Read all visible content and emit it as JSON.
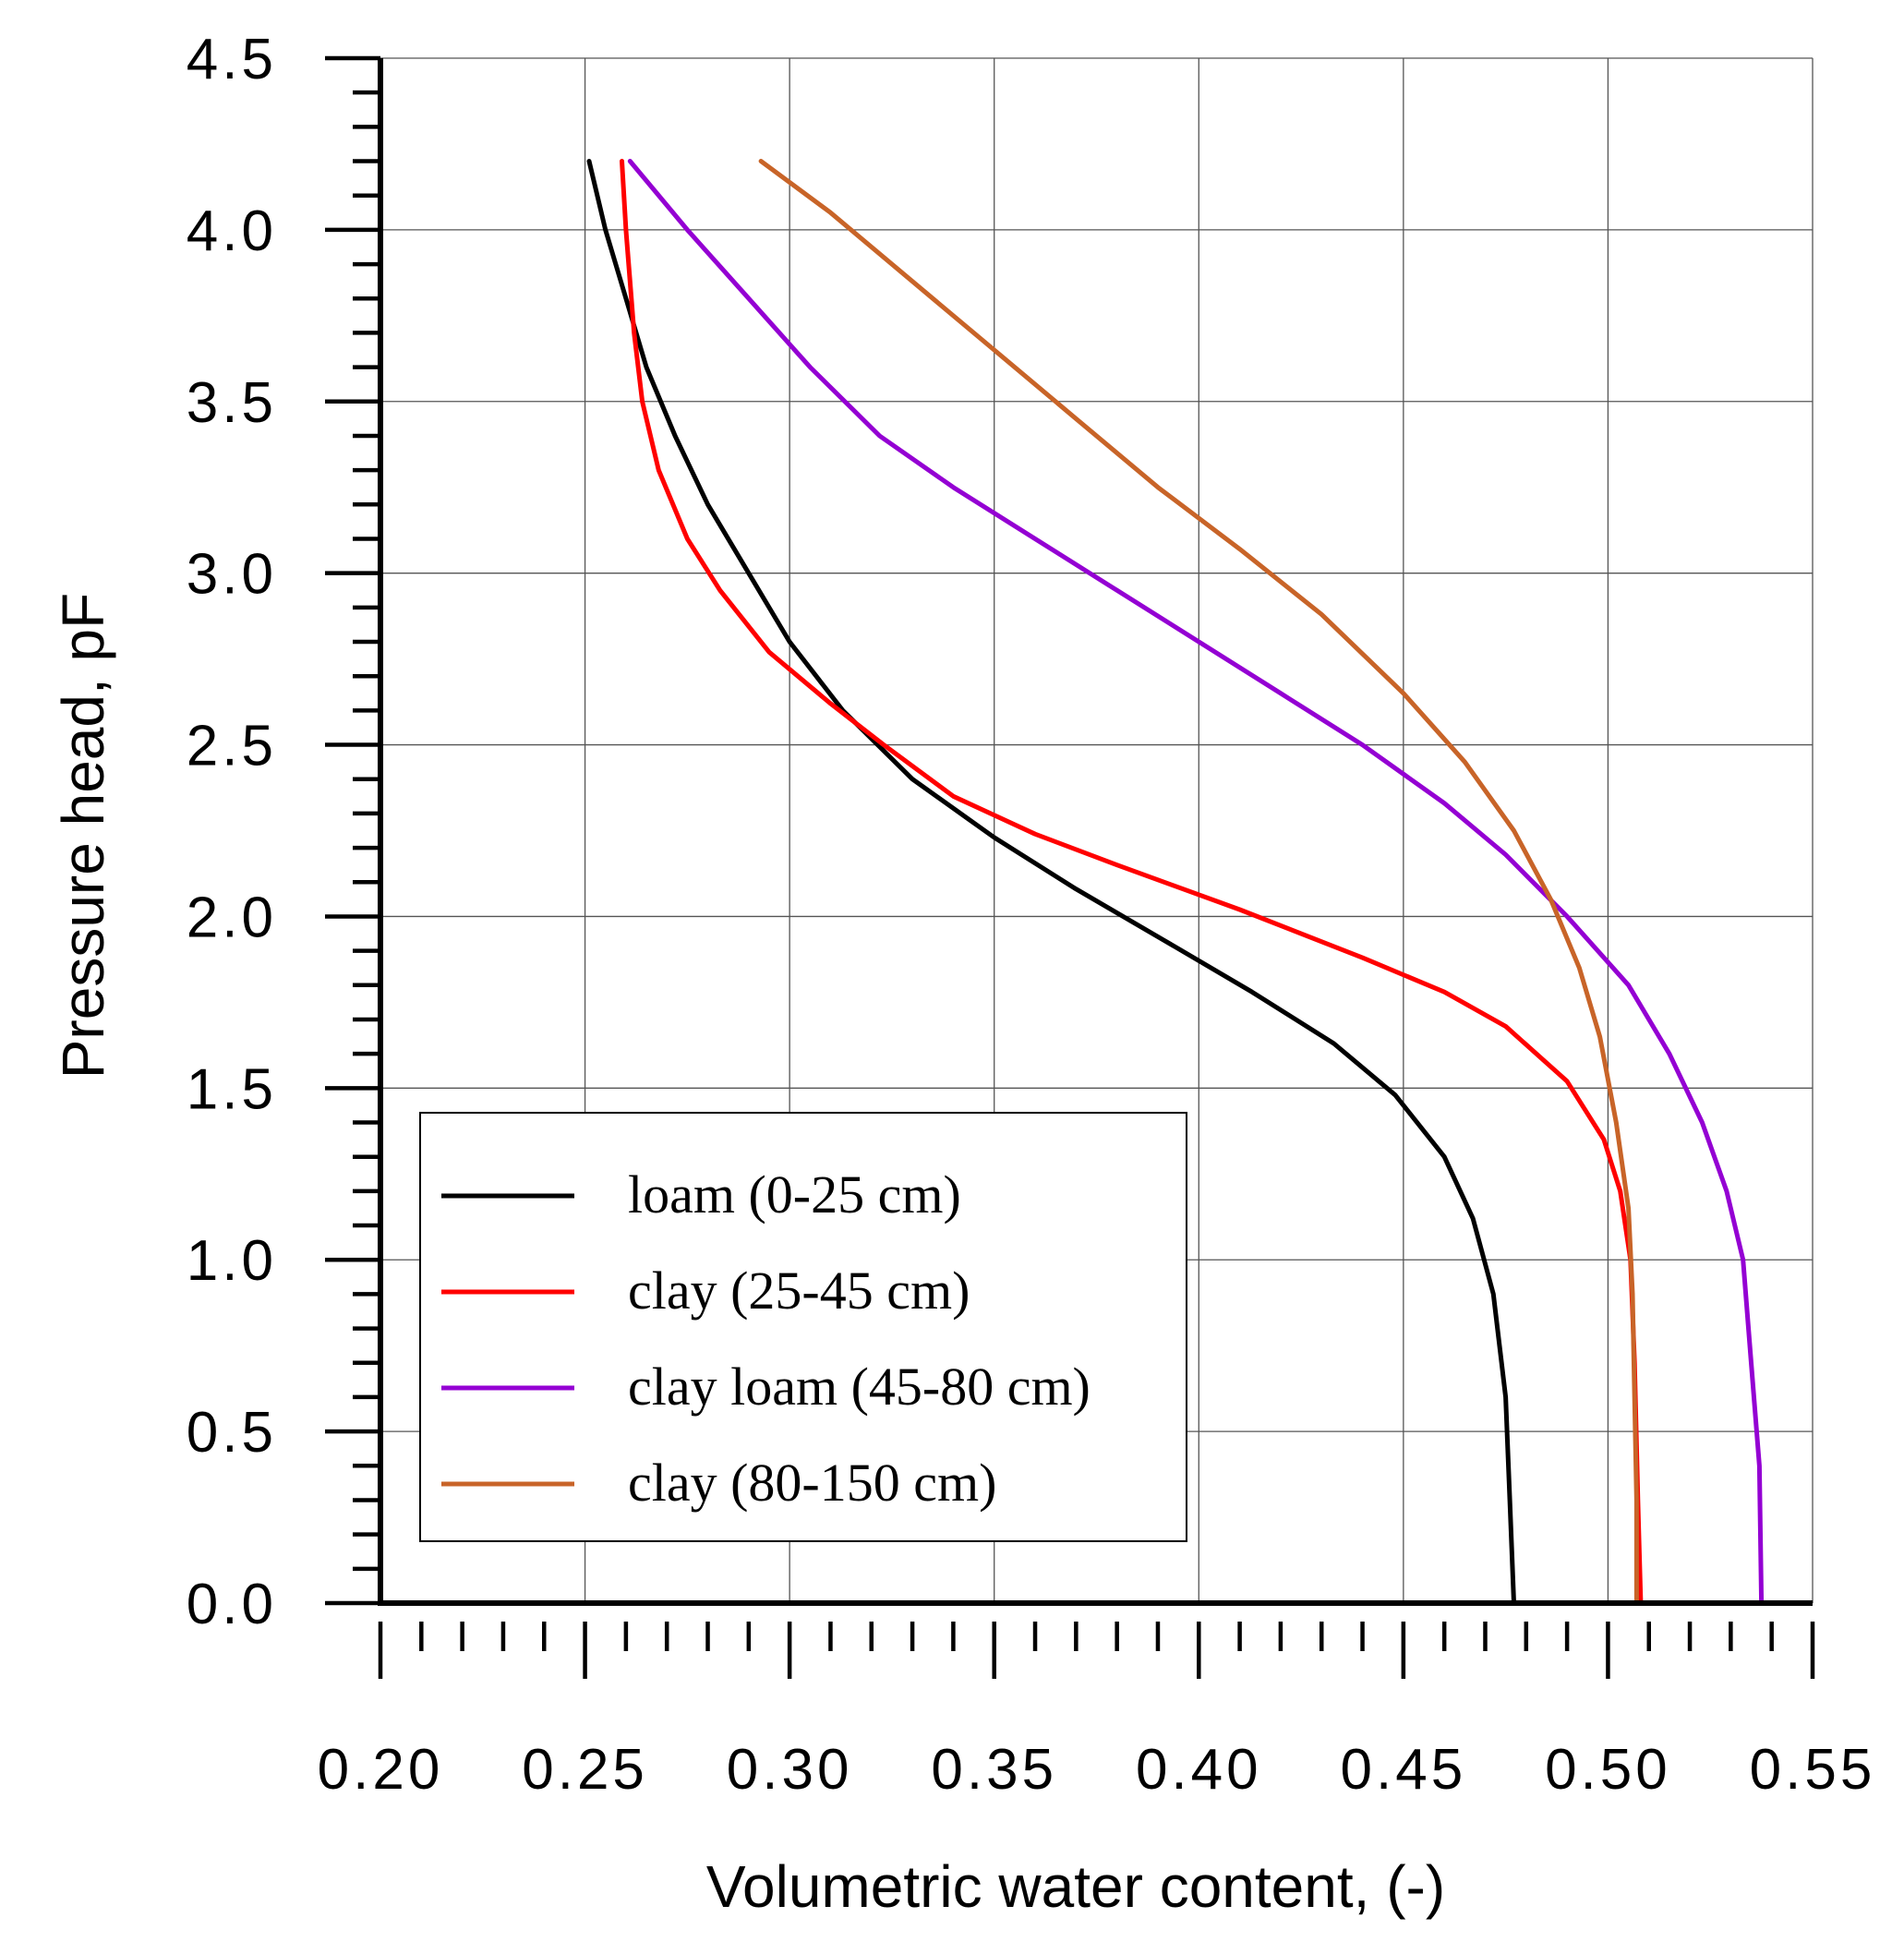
{
  "chart_data": {
    "type": "line",
    "title": "",
    "xlabel": "Volumetric water content, (-)",
    "ylabel": "Pressure head, pF",
    "xlim": [
      0.2,
      0.55
    ],
    "ylim": [
      0.0,
      4.5
    ],
    "xticks": [
      "0.20",
      "0.25",
      "0.30",
      "0.35",
      "0.40",
      "0.45",
      "0.50",
      "0.55"
    ],
    "yticks": [
      "0.0",
      "0.5",
      "1.0",
      "1.5",
      "2.0",
      "2.5",
      "3.0",
      "3.5",
      "4.0",
      "4.5"
    ],
    "grid": true,
    "legend_position": "bottom-left",
    "series": [
      {
        "name": "loam (0-25 cm)",
        "color": "#000000",
        "points": [
          [
            0.251,
            4.2
          ],
          [
            0.255,
            4.0
          ],
          [
            0.26,
            3.8
          ],
          [
            0.265,
            3.6
          ],
          [
            0.272,
            3.4
          ],
          [
            0.28,
            3.2
          ],
          [
            0.29,
            3.0
          ],
          [
            0.3,
            2.8
          ],
          [
            0.313,
            2.6
          ],
          [
            0.33,
            2.4
          ],
          [
            0.35,
            2.23
          ],
          [
            0.37,
            2.08
          ],
          [
            0.393,
            1.92
          ],
          [
            0.413,
            1.78
          ],
          [
            0.433,
            1.63
          ],
          [
            0.448,
            1.48
          ],
          [
            0.46,
            1.3
          ],
          [
            0.467,
            1.12
          ],
          [
            0.472,
            0.9
          ],
          [
            0.475,
            0.6
          ],
          [
            0.476,
            0.3
          ],
          [
            0.477,
            0.0
          ]
        ]
      },
      {
        "name": "clay (25-45 cm)",
        "color": "#ff0000",
        "points": [
          [
            0.259,
            4.2
          ],
          [
            0.26,
            4.0
          ],
          [
            0.262,
            3.7
          ],
          [
            0.264,
            3.5
          ],
          [
            0.268,
            3.3
          ],
          [
            0.275,
            3.1
          ],
          [
            0.283,
            2.95
          ],
          [
            0.295,
            2.77
          ],
          [
            0.31,
            2.62
          ],
          [
            0.323,
            2.5
          ],
          [
            0.34,
            2.35
          ],
          [
            0.36,
            2.24
          ],
          [
            0.38,
            2.15
          ],
          [
            0.41,
            2.02
          ],
          [
            0.44,
            1.88
          ],
          [
            0.46,
            1.78
          ],
          [
            0.475,
            1.68
          ],
          [
            0.49,
            1.52
          ],
          [
            0.499,
            1.35
          ],
          [
            0.503,
            1.2
          ],
          [
            0.5055,
            1.0
          ],
          [
            0.5065,
            0.7
          ],
          [
            0.5073,
            0.3
          ],
          [
            0.508,
            0.0
          ]
        ]
      },
      {
        "name": "clay loam (45-80 cm)",
        "color": "#9400d3",
        "points": [
          [
            0.261,
            4.2
          ],
          [
            0.275,
            4.0
          ],
          [
            0.29,
            3.8
          ],
          [
            0.305,
            3.6
          ],
          [
            0.322,
            3.4
          ],
          [
            0.34,
            3.25
          ],
          [
            0.36,
            3.1
          ],
          [
            0.38,
            2.95
          ],
          [
            0.4,
            2.8
          ],
          [
            0.42,
            2.65
          ],
          [
            0.44,
            2.5
          ],
          [
            0.46,
            2.33
          ],
          [
            0.475,
            2.18
          ],
          [
            0.49,
            2.0
          ],
          [
            0.505,
            1.8
          ],
          [
            0.515,
            1.6
          ],
          [
            0.523,
            1.4
          ],
          [
            0.529,
            1.2
          ],
          [
            0.533,
            1.0
          ],
          [
            0.535,
            0.7
          ],
          [
            0.537,
            0.4
          ],
          [
            0.5375,
            0.0
          ]
        ]
      },
      {
        "name": "clay (80-150 cm)",
        "color": "#c86428",
        "points": [
          [
            0.293,
            4.2
          ],
          [
            0.31,
            4.05
          ],
          [
            0.33,
            3.85
          ],
          [
            0.35,
            3.65
          ],
          [
            0.37,
            3.45
          ],
          [
            0.39,
            3.25
          ],
          [
            0.41,
            3.07
          ],
          [
            0.43,
            2.88
          ],
          [
            0.45,
            2.65
          ],
          [
            0.465,
            2.45
          ],
          [
            0.477,
            2.25
          ],
          [
            0.486,
            2.05
          ],
          [
            0.493,
            1.85
          ],
          [
            0.498,
            1.65
          ],
          [
            0.502,
            1.4
          ],
          [
            0.505,
            1.15
          ],
          [
            0.506,
            0.9
          ],
          [
            0.5065,
            0.6
          ],
          [
            0.507,
            0.3
          ],
          [
            0.507,
            0.0
          ]
        ]
      }
    ]
  }
}
